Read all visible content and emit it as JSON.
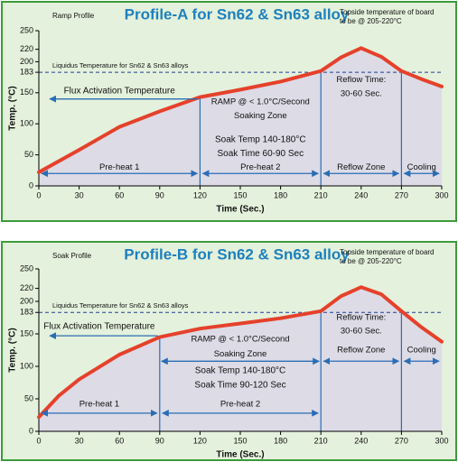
{
  "chart_data": [
    {
      "type": "line",
      "corner_label": "Ramp Profile",
      "title": "Profile-A for Sn62 & Sn63 alloy",
      "note": [
        "Topside temperature of board",
        "to be @ 205-220°C"
      ],
      "liquidus_label": "Liquidus Temperature for Sn62 & Sn63 alloys",
      "liquidus": 183,
      "xlabel": "Time (Sec.)",
      "ylabel": "Temp. (°C)",
      "xlim": [
        0,
        300
      ],
      "xticks": [
        0,
        30,
        60,
        90,
        120,
        150,
        180,
        210,
        240,
        270,
        300
      ],
      "ylim": [
        0,
        250
      ],
      "yticks": [
        0,
        50,
        100,
        150,
        183,
        200,
        220,
        250
      ],
      "dividers": [
        120,
        210,
        270
      ],
      "flux_label": "Flux Activation Temperature",
      "ramp_label": "RAMP @ < 1.0°C/Second",
      "soaking_zone_label": "Soaking Zone",
      "soak_temp_label": "Soak Temp 140-180°C",
      "soak_time_label": "Soak Time 60-90 Sec",
      "reflow_time_label": [
        "Reflow Time:",
        "30-60 Sec."
      ],
      "zones": [
        "Pre-heat 1",
        "Pre-heat 2",
        "Reflow Zone",
        "Cooling"
      ],
      "series": [
        {
          "color": "#e5412b",
          "x": [
            0,
            30,
            60,
            90,
            120,
            150,
            180,
            210,
            225,
            240,
            255,
            270,
            285,
            300
          ],
          "values": [
            22,
            58,
            95,
            120,
            143,
            155,
            168,
            185,
            207,
            222,
            208,
            185,
            172,
            160
          ]
        }
      ]
    },
    {
      "type": "line",
      "corner_label": "Soak Profile",
      "title": "Profile-B for Sn62 & Sn63 alloy",
      "note": [
        "Topside temperature of board",
        "to be @ 205-220°C"
      ],
      "liquidus_label": "Liquidus Temperature for Sn62 & Sn63 alloys",
      "liquidus": 183,
      "xlabel": "Time (Sec.)",
      "ylabel": "Temp. (°C)",
      "xlim": [
        0,
        300
      ],
      "xticks": [
        0,
        30,
        60,
        90,
        120,
        150,
        180,
        210,
        240,
        270,
        300
      ],
      "ylim": [
        0,
        250
      ],
      "yticks": [
        0,
        50,
        100,
        150,
        183,
        200,
        220,
        250
      ],
      "dividers": [
        90,
        210,
        270
      ],
      "flux_label": "Flux Activation Temperature",
      "ramp_label": "RAMP @ < 1.0°C/Second",
      "soaking_zone_label": "Soaking Zone",
      "soak_temp_label": "Soak Temp 140-180°C",
      "soak_time_label": "Soak Time 90-120 Sec",
      "reflow_time_label": [
        "Reflow Time:",
        "30-60 Sec."
      ],
      "zones": [
        "Pre-heat 1",
        "Pre-heat 2",
        "Reflow Zone",
        "Cooling"
      ],
      "series": [
        {
          "color": "#e5412b",
          "x": [
            0,
            15,
            30,
            60,
            90,
            120,
            150,
            180,
            210,
            225,
            240,
            255,
            270,
            285,
            300
          ],
          "values": [
            22,
            55,
            80,
            118,
            145,
            158,
            166,
            174,
            185,
            208,
            222,
            211,
            185,
            160,
            138
          ]
        }
      ]
    }
  ]
}
